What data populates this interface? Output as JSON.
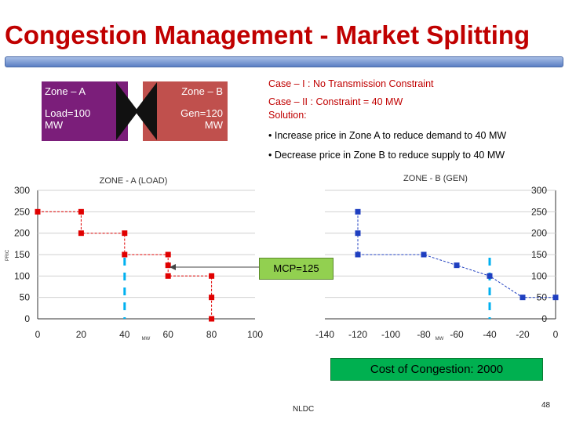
{
  "slide": {
    "title": "Congestion Management - Market Splitting",
    "footer_center": "NLDC",
    "page_number": "48"
  },
  "zones": {
    "zone_a": {
      "name": "Zone – A",
      "value_line1": "Load=100",
      "value_line2": "MW"
    },
    "zone_b": {
      "name": "Zone – B",
      "value_line1": "Gen=120",
      "value_line2": "MW"
    }
  },
  "cases": {
    "case1": "Case – I  : No Transmission Constraint",
    "case2": "Case – II : Constraint = 40 MW",
    "solution": "Solution:",
    "bullet1": "• Increase price in Zone A to reduce demand to 40 MW",
    "bullet2": "• Decrease price in Zone B to reduce supply to 40 MW"
  },
  "annotations": {
    "mcp": "MCP=125",
    "cost_of_congestion": "Cost of Congestion: 2000"
  },
  "colors": {
    "title": "#c00000",
    "zone_a": "#7b1e7a",
    "zone_b": "#c0504d",
    "series_a": "#e00000",
    "series_b": "#1f3fc0",
    "constraint": "#00b0f0",
    "mcp_box": "#92d050",
    "cost_box": "#00b050"
  },
  "chart_data": [
    {
      "type": "line",
      "title": "ZONE - A (LOAD)",
      "ylabel": "PRIC",
      "xlabel": "MW",
      "x_ticks": [
        0,
        20,
        40,
        60,
        80,
        100
      ],
      "y_ticks": [
        0,
        50,
        100,
        150,
        200,
        250,
        300
      ],
      "xlim": [
        0,
        100
      ],
      "ylim": [
        0,
        300
      ],
      "series": [
        {
          "values": [
            [
              0,
              250
            ],
            [
              20,
              250
            ],
            [
              20,
              200
            ],
            [
              40,
              200
            ],
            [
              40,
              150
            ],
            [
              60,
              150
            ],
            [
              60,
              125
            ],
            [
              60,
              100
            ],
            [
              80,
              100
            ],
            [
              80,
              50
            ],
            [
              80,
              0
            ]
          ]
        }
      ],
      "constraint_x": 40
    },
    {
      "type": "line",
      "title": "ZONE - B (GEN)",
      "xlabel": "MW",
      "x_ticks": [
        -140,
        -120,
        -100,
        -80,
        -60,
        -40,
        -20,
        0
      ],
      "y_ticks": [
        0,
        50,
        100,
        150,
        200,
        250,
        300
      ],
      "xlim": [
        -140,
        0
      ],
      "ylim": [
        0,
        300
      ],
      "series": [
        {
          "values": [
            [
              -120,
              250
            ],
            [
              -120,
              200
            ],
            [
              -120,
              150
            ],
            [
              -80,
              150
            ],
            [
              -60,
              125
            ],
            [
              -40,
              100
            ],
            [
              -20,
              50
            ],
            [
              0,
              50
            ]
          ]
        }
      ],
      "constraint_x": -40
    }
  ]
}
